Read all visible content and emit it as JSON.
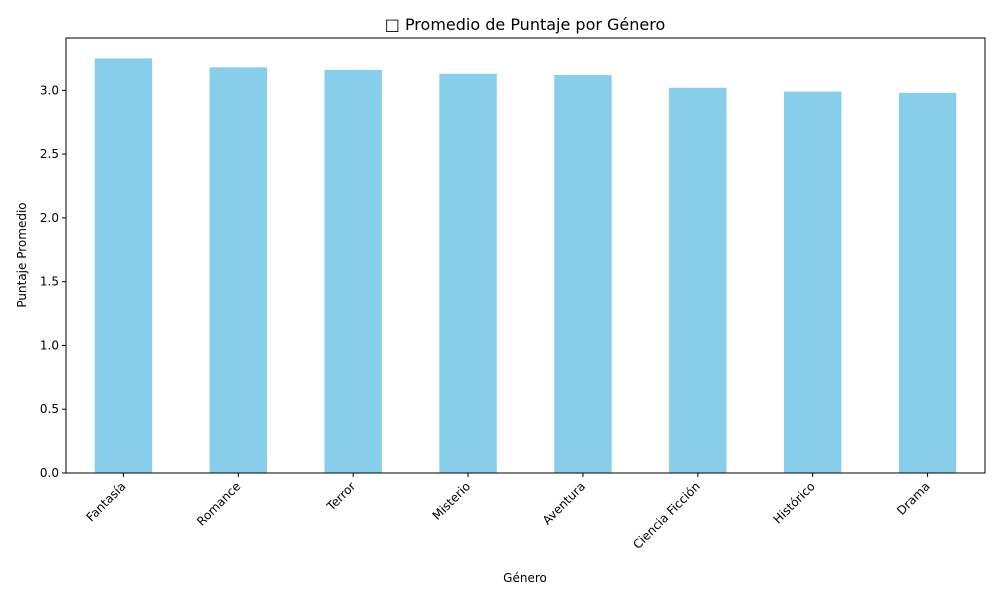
{
  "chart_data": {
    "type": "bar",
    "title": "□ Promedio de Puntaje por Género",
    "xlabel": "Género",
    "ylabel": "Puntaje Promedio",
    "categories": [
      "Fantasía",
      "Romance",
      "Terror",
      "Misterio",
      "Aventura",
      "Ciencia Ficción",
      "Histórico",
      "Drama"
    ],
    "values": [
      3.25,
      3.18,
      3.16,
      3.13,
      3.12,
      3.02,
      2.99,
      2.98
    ],
    "ylim": [
      0,
      3.41
    ],
    "yticks": [
      0.0,
      0.5,
      1.0,
      1.5,
      2.0,
      2.5,
      3.0
    ],
    "ytick_labels": [
      "0.0",
      "0.5",
      "1.0",
      "1.5",
      "2.0",
      "2.5",
      "3.0"
    ],
    "bar_color": "#87ceeb",
    "grid": false,
    "legend": "none"
  }
}
